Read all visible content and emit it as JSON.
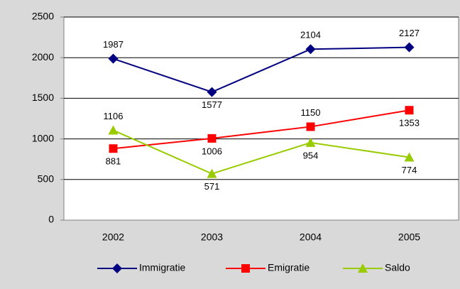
{
  "chart_data": {
    "type": "line",
    "categories": [
      "2002",
      "2003",
      "2004",
      "2005"
    ],
    "series": [
      {
        "name": "Immigratie",
        "color": "#000080",
        "values": [
          1987,
          1577,
          2104,
          2127
        ]
      },
      {
        "name": "Emigratie",
        "color": "#ff0000",
        "values": [
          881,
          1006,
          1150,
          1353
        ]
      },
      {
        "name": "Saldo",
        "color": "#99cc00",
        "values": [
          1106,
          571,
          954,
          774
        ]
      }
    ],
    "ylim": [
      0,
      2500
    ],
    "yticks": [
      0,
      500,
      1000,
      1500,
      2000,
      2500
    ],
    "grid": true,
    "legend": "bottom"
  }
}
